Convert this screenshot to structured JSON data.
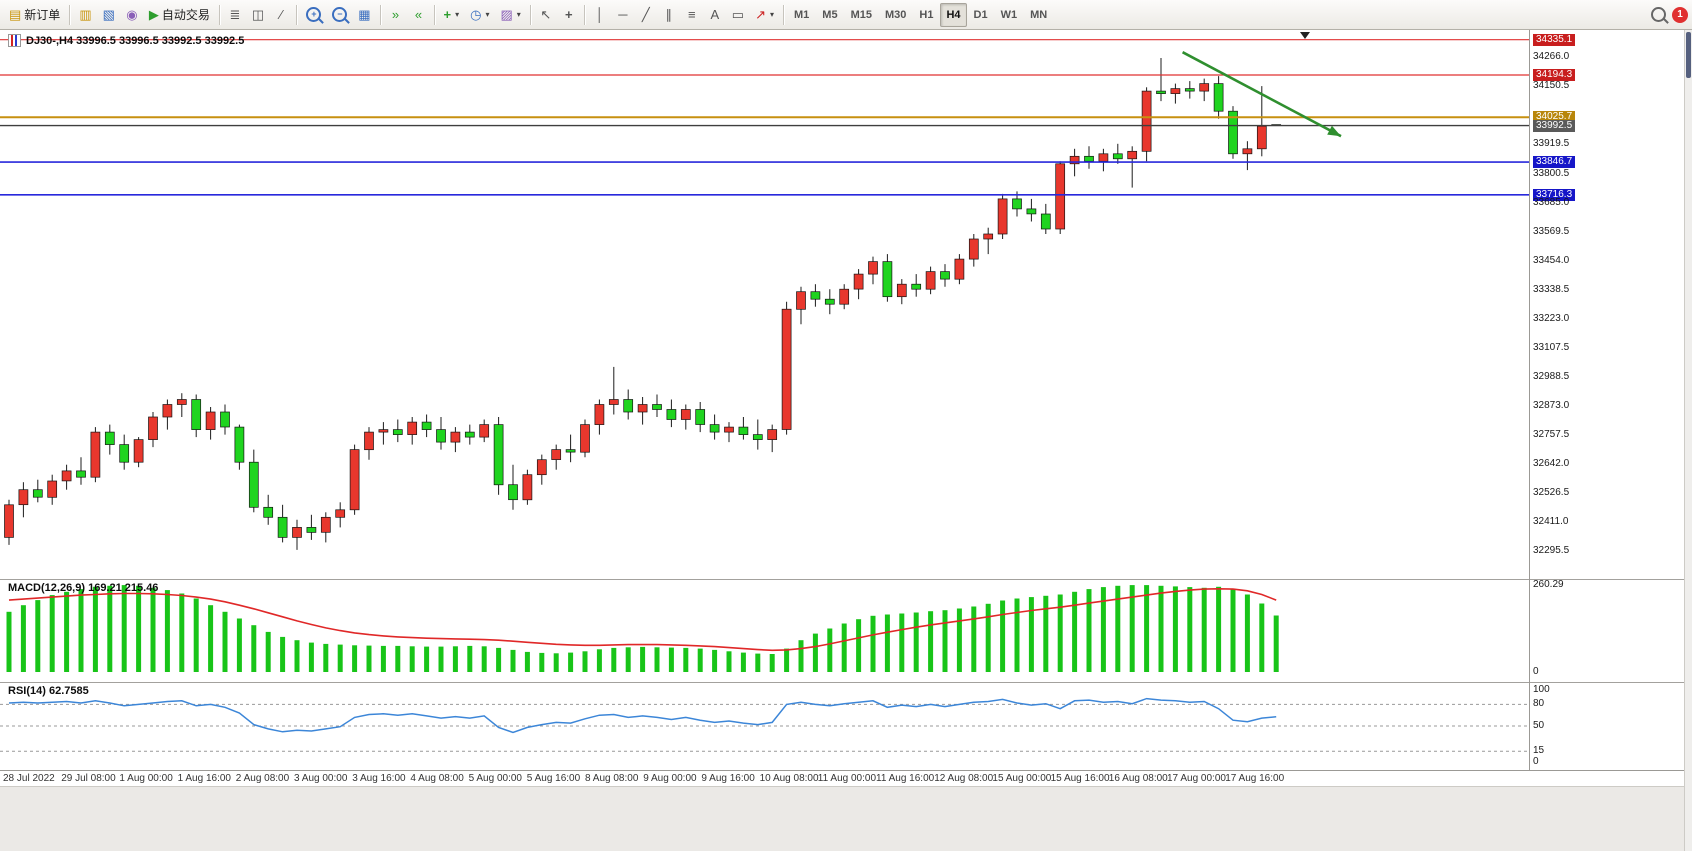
{
  "toolbar": {
    "new_order_label": "新订单",
    "auto_trading_label": "自动交易",
    "timeframes": [
      "M1",
      "M5",
      "M15",
      "M30",
      "H1",
      "H4",
      "D1",
      "W1",
      "MN"
    ],
    "active_timeframe": "H4",
    "notification_count": "1",
    "icons": {
      "new_order": {
        "glyph": "▤"
      },
      "charts": {
        "glyph": "▥"
      },
      "profiles": {
        "glyph": "▧"
      },
      "alerts": {
        "glyph": "◉"
      },
      "play": {
        "glyph": "▶"
      },
      "bars_chart": {
        "glyph": "≣"
      },
      "candle_chart": {
        "glyph": "◫"
      },
      "line_chart": {
        "glyph": "∕"
      },
      "zoom_in": {
        "glyph": "+"
      },
      "zoom_out": {
        "glyph": "−"
      },
      "tile_windows": {
        "glyph": "▦"
      },
      "auto_scroll": {
        "glyph": "»"
      },
      "chart_shift": {
        "glyph": "«"
      },
      "indicators": {
        "glyph": "+"
      },
      "periods": {
        "glyph": "◷"
      },
      "templates": {
        "glyph": "▨"
      },
      "cursor": {
        "glyph": "↖"
      },
      "crosshair": {
        "glyph": "+"
      },
      "vertical_line": {
        "glyph": "│"
      },
      "horizontal_line": {
        "glyph": "─"
      },
      "trend_line": {
        "glyph": "╱"
      },
      "channel": {
        "glyph": "∥"
      },
      "fibonacci": {
        "glyph": "≡"
      },
      "text_tool": {
        "glyph": "A"
      },
      "label_tool": {
        "glyph": "▭"
      },
      "arrow_tool": {
        "glyph": "↗"
      },
      "dropdown_caret": {
        "glyph": "▾"
      }
    }
  },
  "chart": {
    "title": "DJ30-,H4 33996.5 33996.5 33992.5 33992.5",
    "current_price": "33992.5",
    "price_axis_labels": [
      {
        "text": "34335.1",
        "style": "red"
      },
      {
        "text": "34266.0",
        "style": "plain"
      },
      {
        "text": "34194.3",
        "style": "red"
      },
      {
        "text": "34150.5",
        "style": "plain"
      },
      {
        "text": "34025.7",
        "style": "gold"
      },
      {
        "text": "33992.5",
        "style": "gray"
      },
      {
        "text": "33919.5",
        "style": "plain"
      },
      {
        "text": "33846.7",
        "style": "blue"
      },
      {
        "text": "33800.5",
        "style": "plain"
      },
      {
        "text": "33716.3",
        "style": "blue"
      },
      {
        "text": "33685.0",
        "style": "plain"
      },
      {
        "text": "33569.5",
        "style": "plain"
      },
      {
        "text": "33454.0",
        "style": "plain"
      },
      {
        "text": "33338.5",
        "style": "plain"
      },
      {
        "text": "33223.0",
        "style": "plain"
      },
      {
        "text": "33107.5",
        "style": "plain"
      },
      {
        "text": "32988.5",
        "style": "plain"
      },
      {
        "text": "32873.0",
        "style": "plain"
      },
      {
        "text": "32757.5",
        "style": "plain"
      },
      {
        "text": "32642.0",
        "style": "plain"
      },
      {
        "text": "32526.5",
        "style": "plain"
      },
      {
        "text": "32411.0",
        "style": "plain"
      },
      {
        "text": "32295.5",
        "style": "plain"
      }
    ],
    "time_axis_labels": [
      "28 Jul 2022",
      "29 Jul 08:00",
      "1 Aug 00:00",
      "1 Aug 16:00",
      "2 Aug 08:00",
      "3 Aug 00:00",
      "3 Aug 16:00",
      "4 Aug 08:00",
      "5 Aug 00:00",
      "5 Aug 16:00",
      "8 Aug 08:00",
      "9 Aug 00:00",
      "9 Aug 16:00",
      "10 Aug 08:00",
      "11 Aug 00:00",
      "11 Aug 16:00",
      "12 Aug 08:00",
      "15 Aug 00:00",
      "15 Aug 16:00",
      "16 Aug 08:00",
      "17 Aug 00:00",
      "17 Aug 16:00"
    ]
  },
  "macd": {
    "label": "MACD(12,26,9) 169.21 215.46",
    "axis_labels": [
      {
        "text": "260.29",
        "value": 260.29
      },
      {
        "text": "0",
        "value": 0
      }
    ]
  },
  "rsi": {
    "label": "RSI(14) 62.7585",
    "axis_labels": [
      {
        "text": "100",
        "value": 100
      },
      {
        "text": "80",
        "value": 80
      },
      {
        "text": "50",
        "value": 50
      },
      {
        "text": "15",
        "value": 15
      },
      {
        "text": "0",
        "value": 0
      }
    ]
  },
  "chart_data": {
    "type": "candlestick",
    "symbol": "DJ30-",
    "period": "H4",
    "up_color": "#e8372d",
    "down_color": "#1fd41f",
    "price_range": {
      "min": 32188,
      "max": 34374
    },
    "candles": [
      [
        32350,
        32500,
        32320,
        32480
      ],
      [
        32480,
        32570,
        32430,
        32540
      ],
      [
        32540,
        32580,
        32490,
        32510
      ],
      [
        32510,
        32600,
        32480,
        32575
      ],
      [
        32575,
        32640,
        32540,
        32615
      ],
      [
        32615,
        32670,
        32560,
        32590
      ],
      [
        32590,
        32790,
        32570,
        32770
      ],
      [
        32770,
        32800,
        32680,
        32720
      ],
      [
        32720,
        32760,
        32620,
        32650
      ],
      [
        32650,
        32750,
        32630,
        32740
      ],
      [
        32740,
        32850,
        32710,
        32830
      ],
      [
        32830,
        32900,
        32780,
        32880
      ],
      [
        32880,
        32925,
        32830,
        32900
      ],
      [
        32900,
        32920,
        32750,
        32780
      ],
      [
        32780,
        32870,
        32740,
        32850
      ],
      [
        32850,
        32880,
        32760,
        32790
      ],
      [
        32790,
        32800,
        32620,
        32650
      ],
      [
        32650,
        32700,
        32450,
        32470
      ],
      [
        32470,
        32520,
        32400,
        32430
      ],
      [
        32430,
        32480,
        32330,
        32350
      ],
      [
        32350,
        32420,
        32300,
        32390
      ],
      [
        32390,
        32440,
        32340,
        32370
      ],
      [
        32370,
        32450,
        32330,
        32430
      ],
      [
        32430,
        32490,
        32390,
        32460
      ],
      [
        32460,
        32720,
        32440,
        32700
      ],
      [
        32700,
        32790,
        32660,
        32770
      ],
      [
        32770,
        32810,
        32720,
        32780
      ],
      [
        32780,
        32820,
        32730,
        32760
      ],
      [
        32760,
        32830,
        32720,
        32810
      ],
      [
        32810,
        32840,
        32750,
        32780
      ],
      [
        32780,
        32830,
        32700,
        32730
      ],
      [
        32730,
        32790,
        32690,
        32770
      ],
      [
        32770,
        32800,
        32720,
        32750
      ],
      [
        32750,
        32820,
        32730,
        32800
      ],
      [
        32800,
        32830,
        32520,
        32560
      ],
      [
        32560,
        32640,
        32460,
        32500
      ],
      [
        32500,
        32620,
        32480,
        32600
      ],
      [
        32600,
        32680,
        32560,
        32660
      ],
      [
        32660,
        32720,
        32620,
        32700
      ],
      [
        32700,
        32760,
        32650,
        32690
      ],
      [
        32690,
        32820,
        32670,
        32800
      ],
      [
        32800,
        32900,
        32760,
        32880
      ],
      [
        32880,
        33030,
        32840,
        32900
      ],
      [
        32900,
        32940,
        32820,
        32850
      ],
      [
        32850,
        32910,
        32800,
        32880
      ],
      [
        32880,
        32920,
        32830,
        32860
      ],
      [
        32860,
        32900,
        32790,
        32820
      ],
      [
        32820,
        32880,
        32780,
        32860
      ],
      [
        32860,
        32890,
        32770,
        32800
      ],
      [
        32800,
        32840,
        32740,
        32770
      ],
      [
        32770,
        32810,
        32730,
        32790
      ],
      [
        32790,
        32830,
        32740,
        32760
      ],
      [
        32760,
        32820,
        32700,
        32740
      ],
      [
        32740,
        32800,
        32690,
        32780
      ],
      [
        32780,
        33290,
        32760,
        33260
      ],
      [
        33260,
        33350,
        33200,
        33330
      ],
      [
        33330,
        33360,
        33270,
        33300
      ],
      [
        33300,
        33340,
        33240,
        33280
      ],
      [
        33280,
        33360,
        33260,
        33340
      ],
      [
        33340,
        33420,
        33300,
        33400
      ],
      [
        33400,
        33470,
        33360,
        33450
      ],
      [
        33450,
        33480,
        33290,
        33310
      ],
      [
        33310,
        33380,
        33280,
        33360
      ],
      [
        33360,
        33400,
        33310,
        33340
      ],
      [
        33340,
        33430,
        33320,
        33410
      ],
      [
        33410,
        33440,
        33350,
        33380
      ],
      [
        33380,
        33480,
        33360,
        33460
      ],
      [
        33460,
        33560,
        33430,
        33540
      ],
      [
        33540,
        33585,
        33480,
        33560
      ],
      [
        33560,
        33720,
        33540,
        33700
      ],
      [
        33700,
        33730,
        33630,
        33660
      ],
      [
        33660,
        33700,
        33610,
        33640
      ],
      [
        33640,
        33680,
        33560,
        33580
      ],
      [
        33580,
        33850,
        33560,
        33840
      ],
      [
        33840,
        33900,
        33790,
        33870
      ],
      [
        33870,
        33910,
        33820,
        33850
      ],
      [
        33850,
        33900,
        33810,
        33880
      ],
      [
        33880,
        33920,
        33840,
        33860
      ],
      [
        33860,
        33910,
        33745,
        33890
      ],
      [
        33890,
        34145,
        33850,
        34130
      ],
      [
        34130,
        34262,
        34090,
        34120
      ],
      [
        34120,
        34160,
        34080,
        34140
      ],
      [
        34140,
        34170,
        34100,
        34130
      ],
      [
        34130,
        34180,
        34090,
        34160
      ],
      [
        34160,
        34190,
        34020,
        34050
      ],
      [
        34050,
        34070,
        33860,
        33880
      ],
      [
        33880,
        33930,
        33815,
        33900
      ],
      [
        33900,
        34150,
        33870,
        33990
      ],
      [
        33996.5,
        33996.5,
        33992.5,
        33992.5
      ]
    ],
    "hlines": [
      {
        "price": 34335.1,
        "color": "#e03232",
        "width": 1.2
      },
      {
        "price": 34194.3,
        "color": "#e03232",
        "width": 1.2
      },
      {
        "price": 34025.7,
        "color": "#c79010",
        "width": 2
      },
      {
        "price": 33992.5,
        "color": "#3f3f3f",
        "width": 1.4
      },
      {
        "price": 33846.7,
        "color": "#2828dc",
        "width": 1.6
      },
      {
        "price": 33716.3,
        "color": "#2828dc",
        "width": 1.6
      }
    ],
    "annotation_arrow": {
      "from_bar": 81.5,
      "from_price": 34285,
      "to_bar": 92.5,
      "to_price": 33950,
      "color": "#2f8f2f"
    },
    "macd": {
      "histogram_color": "#18c418",
      "signal_color": "#e02828",
      "max": 260.29,
      "histogram": [
        180,
        200,
        215,
        230,
        240,
        248,
        255,
        258,
        260,
        258,
        252,
        245,
        235,
        220,
        200,
        180,
        160,
        140,
        120,
        105,
        95,
        88,
        84,
        82,
        80,
        79,
        78,
        78,
        77,
        76,
        76,
        77,
        78,
        77,
        72,
        66,
        60,
        57,
        56,
        58,
        62,
        68,
        72,
        74,
        75,
        74,
        73,
        72,
        70,
        66,
        62,
        58,
        55,
        54,
        70,
        95,
        115,
        130,
        145,
        158,
        168,
        172,
        175,
        178,
        182,
        185,
        190,
        196,
        204,
        214,
        220,
        224,
        228,
        232,
        240,
        248,
        254,
        258,
        260,
        260,
        258,
        256,
        254,
        252,
        255,
        248,
        232,
        205,
        169
      ],
      "signal": [
        215,
        218,
        221,
        224,
        227,
        230,
        232,
        234,
        235,
        235,
        234,
        232,
        229,
        224,
        218,
        210,
        200,
        189,
        177,
        165,
        153,
        142,
        132,
        124,
        117,
        112,
        108,
        105,
        103,
        101,
        100,
        99,
        98,
        97,
        95,
        92,
        89,
        86,
        83,
        81,
        80,
        80,
        81,
        82,
        82,
        82,
        81,
        80,
        78,
        76,
        73,
        70,
        67,
        65,
        66,
        70,
        76,
        84,
        93,
        102,
        111,
        119,
        127,
        134,
        141,
        147,
        153,
        159,
        165,
        172,
        178,
        184,
        189,
        194,
        200,
        206,
        212,
        218,
        224,
        230,
        236,
        241,
        245,
        248,
        249,
        248,
        243,
        232,
        215
      ]
    },
    "rsi": {
      "color": "#3c86d8",
      "levels": [
        80,
        50,
        15
      ],
      "values": [
        82,
        83,
        82,
        83,
        84,
        82,
        85,
        82,
        78,
        80,
        82,
        84,
        85,
        78,
        80,
        76,
        68,
        52,
        46,
        42,
        44,
        43,
        46,
        49,
        62,
        66,
        67,
        65,
        67,
        64,
        61,
        63,
        61,
        64,
        48,
        41,
        48,
        52,
        55,
        54,
        60,
        65,
        66,
        62,
        64,
        62,
        59,
        62,
        58,
        55,
        57,
        54,
        52,
        55,
        80,
        83,
        80,
        78,
        81,
        83,
        85,
        76,
        79,
        77,
        80,
        77,
        80,
        83,
        84,
        87,
        82,
        79,
        81,
        74,
        85,
        86,
        83,
        84,
        81,
        88,
        86,
        85,
        83,
        84,
        74,
        58,
        56,
        61,
        62.76
      ]
    }
  }
}
